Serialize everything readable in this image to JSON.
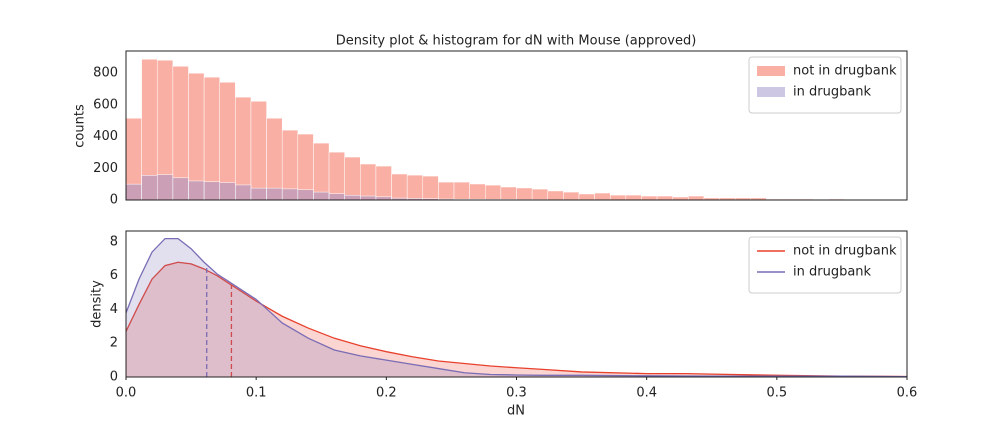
{
  "chart_data": [
    {
      "type": "histogram",
      "title": "Density plot & histogram for dN with Mouse (approved)",
      "ylabel": "counts",
      "bins": [
        0,
        0.012,
        0.024,
        0.036,
        0.048,
        0.06,
        0.072,
        0.084,
        0.096,
        0.108,
        0.12,
        0.132,
        0.144,
        0.156,
        0.168,
        0.18,
        0.192,
        0.204,
        0.216,
        0.228,
        0.24,
        0.252,
        0.264,
        0.276,
        0.288,
        0.3,
        0.312,
        0.324,
        0.336,
        0.348,
        0.36,
        0.372,
        0.384,
        0.396,
        0.408,
        0.42,
        0.432,
        0.444,
        0.456,
        0.468,
        0.48,
        0.492,
        0.504,
        0.516,
        0.528,
        0.54,
        0.552,
        0.564,
        0.576,
        0.588,
        0.6
      ],
      "series": [
        {
          "name": "not in drugbank",
          "color": "#f4604a",
          "values": [
            516,
            888,
            882,
            844,
            800,
            775,
            743,
            649,
            623,
            516,
            441,
            416,
            359,
            302,
            271,
            227,
            214,
            164,
            157,
            151,
            113,
            113,
            101,
            94,
            82,
            76,
            69,
            57,
            50,
            38,
            44,
            31,
            31,
            25,
            25,
            19,
            25,
            13,
            13,
            13,
            13,
            6,
            6,
            6,
            3,
            6,
            3,
            3,
            0,
            3
          ]
        },
        {
          "name": "in drugbank",
          "color": "#9e90c8",
          "values": [
            100,
            155,
            160,
            140,
            120,
            115,
            110,
            95,
            75,
            75,
            70,
            65,
            50,
            40,
            30,
            25,
            20,
            12,
            10,
            8,
            6,
            5,
            5,
            4,
            4,
            3,
            3,
            2,
            2,
            2,
            2,
            1,
            1,
            1,
            1,
            0,
            0,
            0,
            0,
            0,
            0,
            0,
            0,
            0,
            0,
            0,
            0,
            0,
            0,
            0
          ]
        }
      ],
      "xlim": [
        0,
        0.6
      ],
      "ylim": [
        0,
        940
      ],
      "yticks": [
        0,
        200,
        400,
        600,
        800
      ],
      "legend": "upper right"
    },
    {
      "type": "area",
      "ylabel": "density",
      "xlabel": "dN",
      "x": [
        0,
        0.01,
        0.02,
        0.03,
        0.04,
        0.05,
        0.06,
        0.07,
        0.08,
        0.09,
        0.1,
        0.11,
        0.12,
        0.14,
        0.16,
        0.18,
        0.2,
        0.22,
        0.24,
        0.26,
        0.28,
        0.3,
        0.32,
        0.35,
        0.4,
        0.43,
        0.45,
        0.5,
        0.55,
        0.6
      ],
      "series": [
        {
          "name": "not in drugbank",
          "color": "#e8412d",
          "vline": 0.081,
          "values": [
            2.7,
            4.3,
            5.8,
            6.6,
            6.8,
            6.7,
            6.4,
            6.0,
            5.5,
            5.0,
            4.5,
            4.05,
            3.6,
            2.9,
            2.3,
            1.85,
            1.5,
            1.2,
            0.95,
            0.8,
            0.65,
            0.55,
            0.45,
            0.3,
            0.2,
            0.2,
            0.17,
            0.1,
            0.05,
            0.03
          ]
        },
        {
          "name": "in drugbank",
          "color": "#7a6cb5",
          "vline": 0.062,
          "values": [
            3.8,
            5.8,
            7.4,
            8.2,
            8.2,
            7.6,
            6.8,
            6.1,
            5.6,
            5.1,
            4.6,
            3.9,
            3.2,
            2.3,
            1.6,
            1.25,
            1.0,
            0.75,
            0.5,
            0.25,
            0.15,
            0.12,
            0.1,
            0.1,
            0.07,
            0.06,
            0.05,
            0.05,
            0.05,
            0.02
          ]
        }
      ],
      "xlim": [
        0,
        0.6
      ],
      "ylim": [
        0,
        8.65
      ],
      "xticks": [
        {
          "value": 0,
          "label": "0.0"
        },
        0.1,
        0.2,
        0.3,
        0.4,
        0.5,
        0.6
      ],
      "yticks": [
        0,
        2,
        4,
        6,
        8
      ],
      "legend": "upper right"
    }
  ]
}
